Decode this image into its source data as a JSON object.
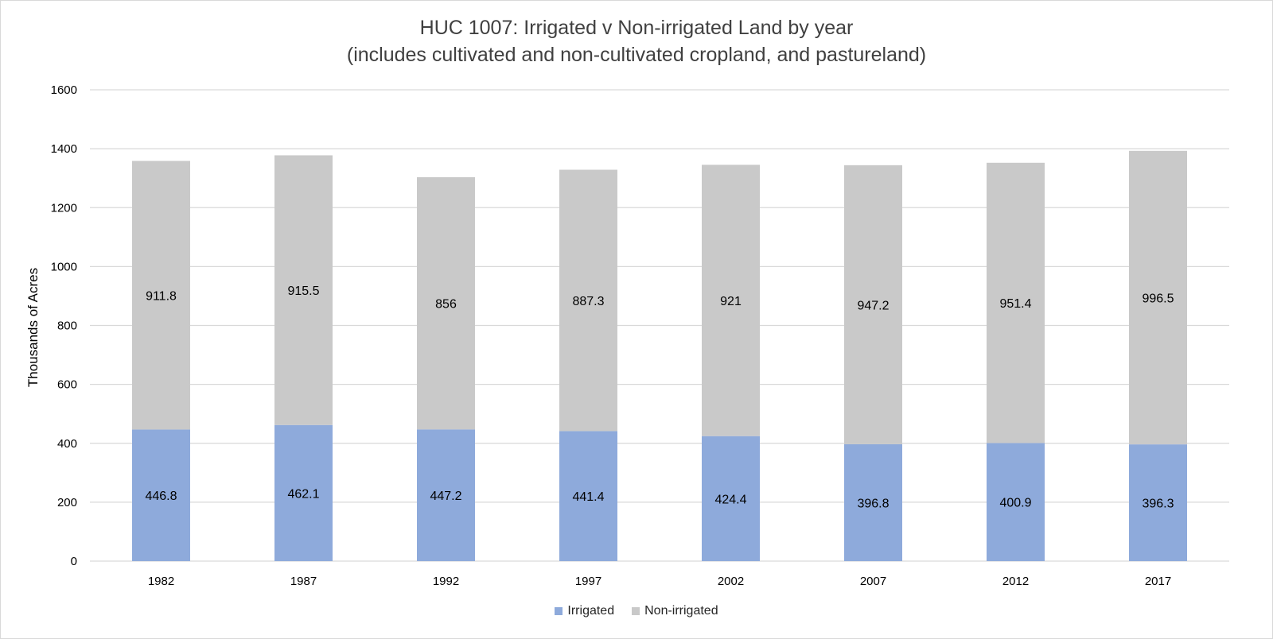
{
  "title_line1": "HUC 1007: Irrigated v Non-irrigated Land by year",
  "title_line2": "(includes cultivated and non-cultivated cropland, and pastureland)",
  "chart_data": {
    "type": "bar",
    "stacked": true,
    "categories": [
      "1982",
      "1987",
      "1992",
      "1997",
      "2002",
      "2007",
      "2012",
      "2017"
    ],
    "series": [
      {
        "name": "Irrigated",
        "color": "#8eaadb",
        "values": [
          446.8,
          462.1,
          447.2,
          441.4,
          424.4,
          396.8,
          400.9,
          396.3
        ],
        "labels": [
          "446.8",
          "462.1",
          "447.2",
          "441.4",
          "424.4",
          "396.8",
          "400.9",
          "396.3"
        ]
      },
      {
        "name": "Non-irrigated",
        "color": "#c9c9c9",
        "values": [
          911.8,
          915.5,
          856,
          887.3,
          921,
          947.2,
          951.4,
          996.5
        ],
        "labels": [
          "911.8",
          "915.5",
          "856",
          "887.3",
          "921",
          "947.2",
          "951.4",
          "996.5"
        ]
      }
    ],
    "ylabel": "Thousands of Acres",
    "ylim": [
      0,
      1600
    ],
    "yticks": [
      "0",
      "200",
      "400",
      "600",
      "800",
      "1000",
      "1200",
      "1400",
      "1600"
    ],
    "grid": true,
    "legend_position": "bottom"
  }
}
